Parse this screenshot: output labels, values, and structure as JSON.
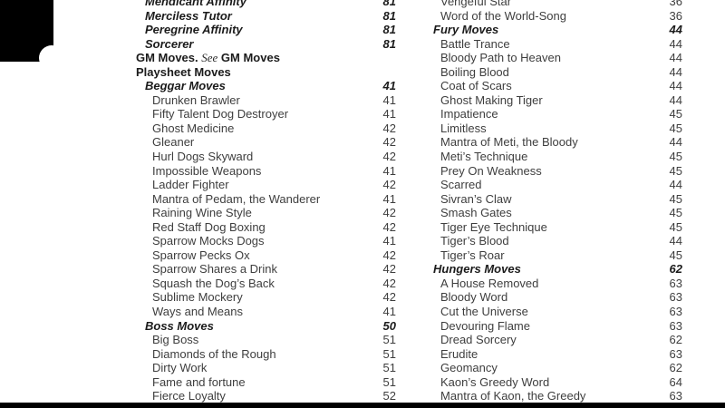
{
  "document": {
    "kind": "table-of-contents-index-page",
    "background_color": "#ffffff",
    "item_text_color": "#3e3e3e",
    "heading_text_color": "#1b1b1b"
  },
  "decor": {
    "ink_color": "#000000",
    "notch_color": "#ffffff",
    "bottom_bar_color": "#000000"
  },
  "left_column": {
    "entries": [
      {
        "kind": "section",
        "label": "Mendicant Affinity",
        "page": "81"
      },
      {
        "kind": "section",
        "label": "Merciless Tutor",
        "page": "81"
      },
      {
        "kind": "section",
        "label": "Peregrine Affinity",
        "page": "81"
      },
      {
        "kind": "section",
        "label": "Sorcerer",
        "page": "81"
      },
      {
        "kind": "chapter",
        "parts": [
          {
            "style": "bold",
            "text": "GM Moves. "
          },
          {
            "style": "see-ref",
            "text": "See"
          },
          {
            "style": "bold",
            "text": " GM Moves"
          }
        ],
        "page": ""
      },
      {
        "kind": "chapter",
        "label": "Playsheet Moves",
        "page": ""
      },
      {
        "kind": "section",
        "label": "Beggar Moves",
        "page": "41"
      },
      {
        "kind": "item",
        "label": "Drunken Brawler",
        "page": "41"
      },
      {
        "kind": "item",
        "label": "Fifty Talent Dog Destroyer",
        "page": "41"
      },
      {
        "kind": "item",
        "label": "Ghost Medicine",
        "page": "42"
      },
      {
        "kind": "item",
        "label": "Gleaner",
        "page": "42"
      },
      {
        "kind": "item",
        "label": "Hurl Dogs Skyward",
        "page": "42"
      },
      {
        "kind": "item",
        "label": "Impossible Weapons",
        "page": "41"
      },
      {
        "kind": "item",
        "label": "Ladder Fighter",
        "page": "42"
      },
      {
        "kind": "item",
        "label": "Mantra of Pedam, the Wanderer",
        "page": "41"
      },
      {
        "kind": "item",
        "label": "Raining Wine Style",
        "page": "42"
      },
      {
        "kind": "item",
        "label": "Red Staff Dog Boxing",
        "page": "42"
      },
      {
        "kind": "item",
        "label": "Sparrow Mocks Dogs",
        "page": "41"
      },
      {
        "kind": "item",
        "label": "Sparrow Pecks Ox",
        "page": "42"
      },
      {
        "kind": "item",
        "label": "Sparrow Shares a Drink",
        "page": "42"
      },
      {
        "kind": "item",
        "label": "Squash the Dog’s Back",
        "page": "42"
      },
      {
        "kind": "item",
        "label": "Sublime Mockery",
        "page": "42"
      },
      {
        "kind": "item",
        "label": "Ways and Means",
        "page": "41"
      },
      {
        "kind": "section",
        "label": "Boss Moves",
        "page": "50"
      },
      {
        "kind": "item",
        "label": "Big Boss",
        "page": "51"
      },
      {
        "kind": "item",
        "label": "Diamonds of the Rough",
        "page": "51"
      },
      {
        "kind": "item",
        "label": "Dirty Work",
        "page": "51"
      },
      {
        "kind": "item",
        "label": "Fame and fortune",
        "page": "51"
      },
      {
        "kind": "item",
        "label": "Fierce Loyalty",
        "page": "52"
      }
    ]
  },
  "right_column": {
    "entries": [
      {
        "kind": "item",
        "label": "Vengeful Star",
        "page": "36"
      },
      {
        "kind": "item",
        "label": "Word of the World-Song",
        "page": "36"
      },
      {
        "kind": "section",
        "label": "Fury Moves",
        "page": "44"
      },
      {
        "kind": "item",
        "label": "Battle Trance",
        "page": "44"
      },
      {
        "kind": "item",
        "label": "Bloody Path to Heaven",
        "page": "44"
      },
      {
        "kind": "item",
        "label": "Boiling Blood",
        "page": "44"
      },
      {
        "kind": "item",
        "label": "Coat of Scars",
        "page": "44"
      },
      {
        "kind": "item",
        "label": "Ghost Making Tiger",
        "page": "44"
      },
      {
        "kind": "item",
        "label": "Impatience",
        "page": "45"
      },
      {
        "kind": "item",
        "label": "Limitless",
        "page": "45"
      },
      {
        "kind": "item",
        "label": "Mantra of Meti, the Bloody",
        "page": "44"
      },
      {
        "kind": "item",
        "label": "Meti’s Technique",
        "page": "45"
      },
      {
        "kind": "item",
        "label": "Prey On Weakness",
        "page": "45"
      },
      {
        "kind": "item",
        "label": "Scarred",
        "page": "44"
      },
      {
        "kind": "item",
        "label": "Sivran’s Claw",
        "page": "45"
      },
      {
        "kind": "item",
        "label": "Smash Gates",
        "page": "45"
      },
      {
        "kind": "item",
        "label": "Tiger Eye Technique",
        "page": "45"
      },
      {
        "kind": "item",
        "label": "Tiger’s Blood",
        "page": "44"
      },
      {
        "kind": "item",
        "label": "Tiger’s Roar",
        "page": "45"
      },
      {
        "kind": "section",
        "label": "Hungers Moves",
        "page": "62"
      },
      {
        "kind": "item",
        "label": "A House Removed",
        "page": "63"
      },
      {
        "kind": "item",
        "label": "Bloody Word",
        "page": "63"
      },
      {
        "kind": "item",
        "label": "Cut the Universe",
        "page": "63"
      },
      {
        "kind": "item",
        "label": "Devouring Flame",
        "page": "63"
      },
      {
        "kind": "item",
        "label": "Dread Sorcery",
        "page": "62"
      },
      {
        "kind": "item",
        "label": "Erudite",
        "page": "63"
      },
      {
        "kind": "item",
        "label": "Geomancy",
        "page": "62"
      },
      {
        "kind": "item",
        "label": "Kaon’s Greedy Word",
        "page": "64"
      },
      {
        "kind": "item",
        "label": "Mantra of Kaon, the Greedy",
        "page": "63"
      }
    ]
  }
}
